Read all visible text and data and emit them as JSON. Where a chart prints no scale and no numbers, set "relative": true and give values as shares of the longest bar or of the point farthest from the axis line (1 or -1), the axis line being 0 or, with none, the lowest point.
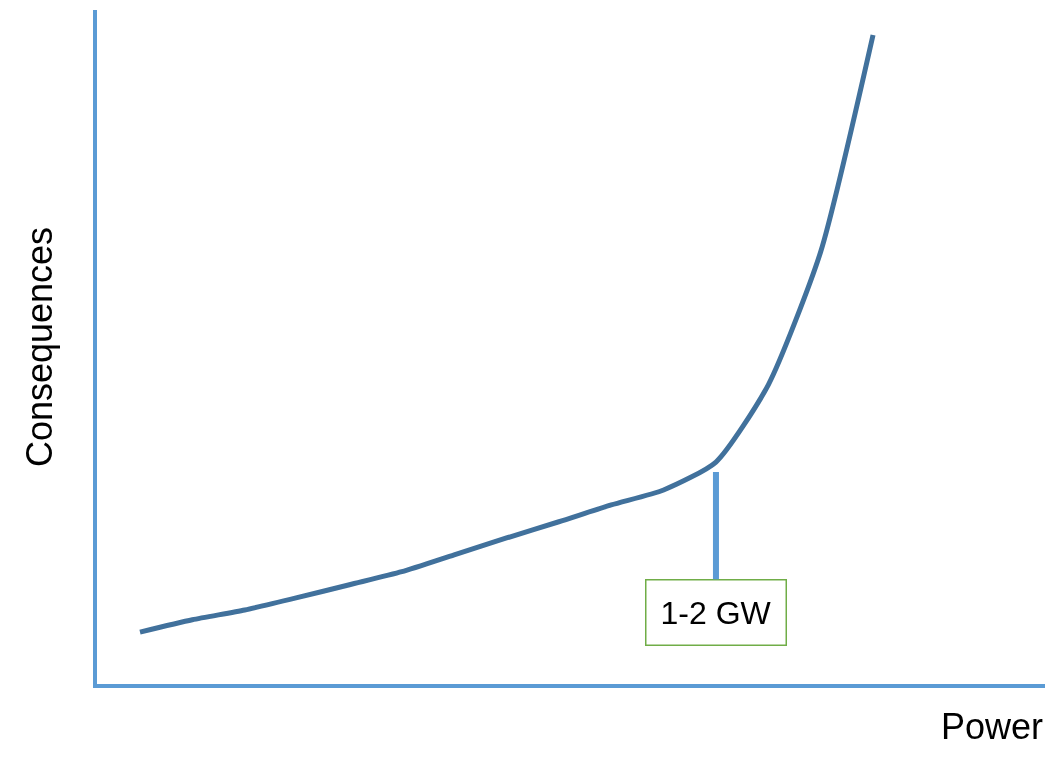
{
  "chart_data": {
    "type": "line",
    "relative": true,
    "xlabel": "Power",
    "ylabel": "Consequences",
    "categories": [
      null,
      null,
      null,
      null,
      null,
      null,
      null,
      null,
      null,
      null,
      null,
      null,
      null,
      null,
      null
    ],
    "series": [
      {
        "color": "#41719c",
        "values": [
          0.08,
          0.099,
          0.114,
          0.133,
          0.153,
          0.173,
          0.199,
          0.225,
          0.25,
          0.276,
          0.299,
          0.342,
          0.461,
          0.666,
          1.0
        ]
      }
    ],
    "annotations": [
      {
        "text": "1-2 GW",
        "y": 0.342
      }
    ],
    "marker": "none",
    "line_style": "solid"
  }
}
